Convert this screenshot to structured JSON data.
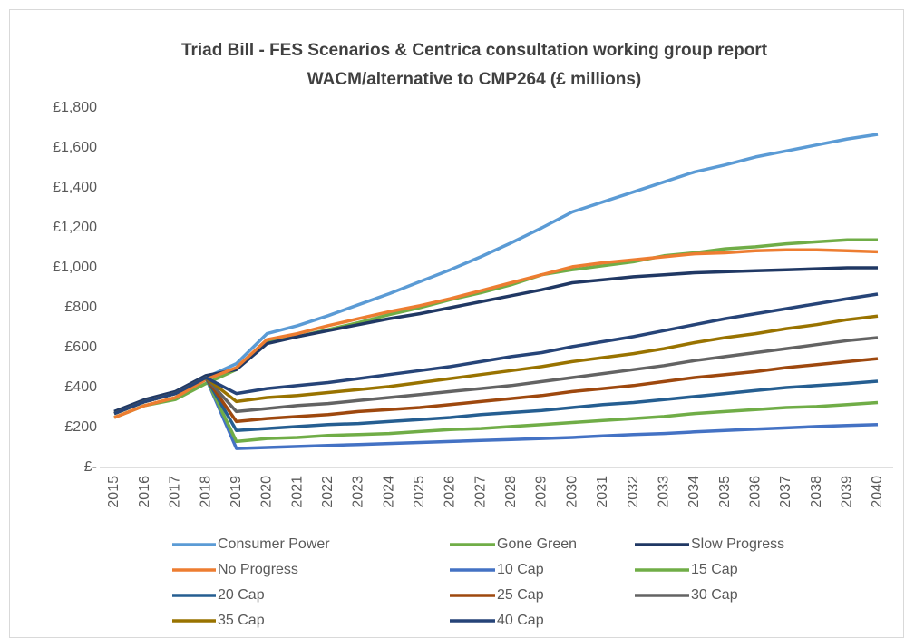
{
  "chart_data": {
    "type": "line",
    "title": "Triad Bill - FES Scenarios & Centrica consultation working group report",
    "subtitle": "WACM/alternative to CMP264 (£ millions)",
    "categories": [
      "2015",
      "2016",
      "2017",
      "2018",
      "2019",
      "2020",
      "2021",
      "2022",
      "2023",
      "2024",
      "2025",
      "2026",
      "2027",
      "2028",
      "2029",
      "2030",
      "2031",
      "2032",
      "2033",
      "2034",
      "2035",
      "2036",
      "2037",
      "2038",
      "2039",
      "2040"
    ],
    "ylim": [
      0,
      1800
    ],
    "yticks": [
      {
        "value": 0,
        "label": "£-"
      },
      {
        "value": 200,
        "label": "£200"
      },
      {
        "value": 400,
        "label": "£400"
      },
      {
        "value": 600,
        "label": "£600"
      },
      {
        "value": 800,
        "label": "£800"
      },
      {
        "value": 1000,
        "label": "£1,000"
      },
      {
        "value": 1200,
        "label": "£1,200"
      },
      {
        "value": 1400,
        "label": "£1,400"
      },
      {
        "value": 1600,
        "label": "£1,600"
      },
      {
        "value": 1800,
        "label": "£1,800"
      }
    ],
    "grid": false,
    "legend": "bottom",
    "series": [
      {
        "name": "Consumer Power",
        "color": "#5b9bd5",
        "values": [
          280,
          330,
          370,
          450,
          520,
          670,
          710,
          760,
          815,
          870,
          930,
          990,
          1055,
          1125,
          1200,
          1280,
          1330,
          1380,
          1430,
          1480,
          1515,
          1555,
          1585,
          1615,
          1645,
          1668
        ]
      },
      {
        "name": "Gone Green",
        "color": "#70ad47",
        "values": [
          250,
          310,
          340,
          420,
          490,
          630,
          655,
          690,
          725,
          765,
          800,
          840,
          875,
          915,
          965,
          990,
          1010,
          1030,
          1060,
          1075,
          1095,
          1105,
          1120,
          1130,
          1140,
          1140
        ]
      },
      {
        "name": "Slow Progress",
        "color": "#203864",
        "values": [
          280,
          340,
          380,
          460,
          490,
          620,
          655,
          685,
          715,
          745,
          770,
          800,
          830,
          860,
          890,
          925,
          940,
          955,
          965,
          975,
          980,
          985,
          990,
          995,
          1000,
          1000
        ]
      },
      {
        "name": "No Progress",
        "color": "#ed7d31",
        "values": [
          250,
          310,
          350,
          440,
          500,
          640,
          670,
          710,
          745,
          780,
          810,
          845,
          885,
          925,
          965,
          1005,
          1025,
          1040,
          1055,
          1070,
          1075,
          1085,
          1090,
          1090,
          1085,
          1080
        ]
      },
      {
        "name": "10 Cap",
        "color": "#4472c4",
        "values": [
          270,
          330,
          370,
          450,
          95,
          100,
          105,
          110,
          115,
          120,
          125,
          130,
          135,
          140,
          145,
          150,
          158,
          165,
          170,
          178,
          185,
          192,
          198,
          205,
          210,
          215
        ]
      },
      {
        "name": "15 Cap",
        "color": "#70ad47",
        "values": [
          270,
          330,
          370,
          450,
          130,
          145,
          150,
          160,
          165,
          170,
          180,
          190,
          195,
          205,
          215,
          225,
          235,
          245,
          255,
          270,
          280,
          290,
          300,
          305,
          315,
          325
        ]
      },
      {
        "name": "20 Cap",
        "color": "#255e91",
        "values": [
          270,
          330,
          370,
          450,
          185,
          195,
          205,
          215,
          220,
          230,
          240,
          250,
          265,
          275,
          285,
          300,
          315,
          325,
          340,
          355,
          370,
          385,
          400,
          410,
          420,
          432
        ]
      },
      {
        "name": "25 Cap",
        "color": "#9e480e",
        "values": [
          270,
          330,
          370,
          450,
          230,
          245,
          255,
          265,
          280,
          290,
          300,
          315,
          330,
          345,
          360,
          380,
          395,
          410,
          430,
          450,
          465,
          480,
          500,
          515,
          530,
          545
        ]
      },
      {
        "name": "30 Cap",
        "color": "#636363",
        "values": [
          270,
          330,
          370,
          450,
          280,
          295,
          310,
          320,
          335,
          350,
          365,
          380,
          395,
          410,
          430,
          450,
          470,
          490,
          510,
          535,
          555,
          575,
          595,
          615,
          635,
          650
        ]
      },
      {
        "name": "35 Cap",
        "color": "#997300",
        "values": [
          270,
          330,
          370,
          450,
          330,
          350,
          360,
          375,
          390,
          405,
          425,
          445,
          465,
          485,
          505,
          530,
          550,
          570,
          595,
          625,
          650,
          670,
          695,
          715,
          740,
          758
        ]
      },
      {
        "name": "40 Cap",
        "color": "#264478",
        "values": [
          270,
          330,
          370,
          450,
          370,
          395,
          410,
          425,
          445,
          465,
          485,
          505,
          530,
          555,
          575,
          605,
          630,
          655,
          685,
          715,
          745,
          770,
          795,
          820,
          845,
          868
        ]
      }
    ]
  }
}
